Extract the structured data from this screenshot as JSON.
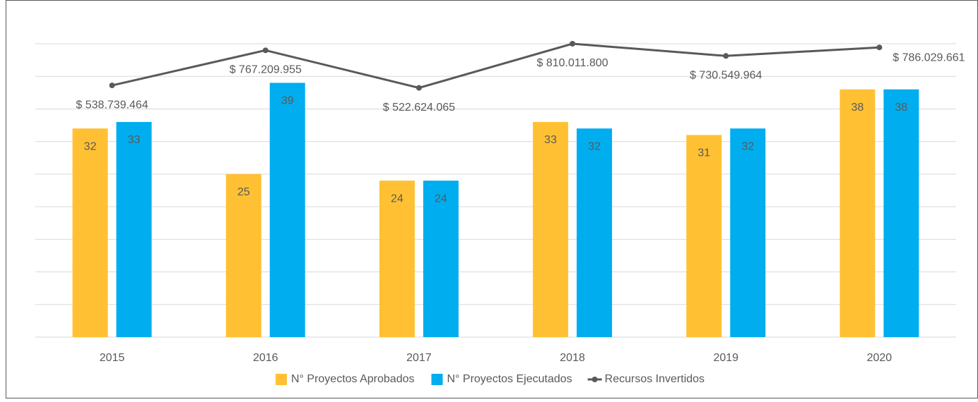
{
  "chart_data": {
    "type": "bar_line",
    "categories": [
      "2015",
      "2016",
      "2017",
      "2018",
      "2019",
      "2020"
    ],
    "series": [
      {
        "name": "N° Proyectos Aprobados",
        "color": "#FFC133",
        "values": [
          32,
          25,
          24,
          33,
          31,
          38
        ]
      },
      {
        "name": "N° Proyectos Ejecutados",
        "color": "#00ADEF",
        "values": [
          33,
          39,
          24,
          32,
          32,
          38
        ]
      },
      {
        "name": "Recursos Invertidos",
        "color": "#595959",
        "axis": "y2",
        "values": [
          538739464,
          767209955,
          522624065,
          810011800,
          730549964,
          786029661
        ],
        "value_labels": [
          "$ 538.739.464",
          "$ 767.209.955",
          "$ 522.624.065",
          "$ 810.011.800",
          "$ 730.549.964",
          "$ 786.029.661"
        ]
      }
    ],
    "ylim": [
      0,
      45
    ],
    "yticks": [
      0,
      5,
      10,
      15,
      20,
      25,
      30,
      35,
      40,
      45
    ],
    "y2lim": [
      -1100000000,
      810000000
    ],
    "grid": true,
    "legend": "bottom"
  }
}
